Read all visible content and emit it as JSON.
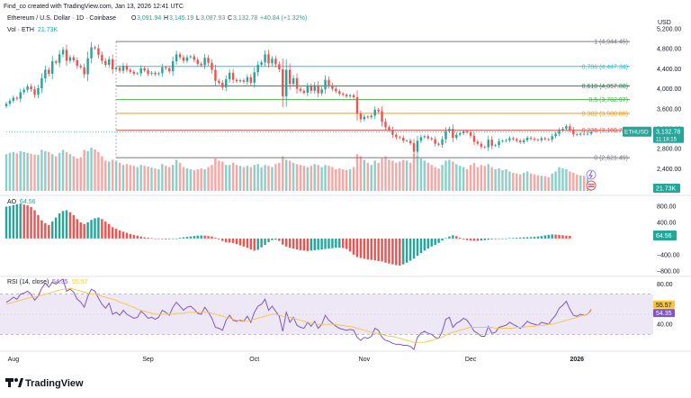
{
  "header": {
    "created_by": "Find_co created with TradingView.com, Jan 13, 2026 12:41 UTC",
    "symbol_line": "Ethereum / U.S. Dollar · 1D · Coinbase",
    "ohlc": {
      "o_label": "O",
      "o": "3,091.94",
      "h_label": "H",
      "h": "3,145.19",
      "l_label": "L",
      "l": "3,087.93",
      "c_label": "C",
      "c": "3,132.78",
      "change": "+40.84 (+1.32%)"
    },
    "volume_label": "Vol · ETH",
    "volume_value": "21.73K",
    "currency": "USD"
  },
  "colors": {
    "up": "#26a69a",
    "down": "#ef5350",
    "up_volume": "#8ccfc8",
    "down_volume": "#f4a8a6",
    "rsi_line": "#7e57c2",
    "rsi_ma": "#f5c542",
    "rsi_band": "#ede7f6",
    "fib_level_1": "#787b86",
    "fib_level_0786": "#26c6da",
    "fib_level_0618": "#1b8a4a",
    "fib_level_05": "#4caf50",
    "fib_level_0382": "#ff9800",
    "fib_level_0236": "#ef5350",
    "fib_level_0": "#787b86"
  },
  "footer": {
    "brand": "TradingView",
    "logo_icon": "tradingview-logo-icon"
  },
  "chart_data": [
    {
      "type": "candlestick",
      "title": "Ethereum / U.S. Dollar · 1D · Coinbase",
      "ylabel": "USD",
      "ylim": [
        2100,
        5200
      ],
      "yticks": [
        2400,
        2800,
        3200,
        3600,
        4000,
        4400,
        4800,
        5200
      ],
      "ytick_labels": [
        "2,400.00",
        "2,800.00",
        "3,200.00",
        "3,600.00",
        "4,000.00",
        "4,400.00",
        "4,800.00",
        "5,200.00"
      ],
      "x_tick_labels": [
        "Aug",
        "Sep",
        "Oct",
        "Nov",
        "Dec",
        "2026"
      ],
      "x_tick_bar_index": [
        2,
        40,
        70,
        101,
        131,
        161
      ],
      "current_price": {
        "symbol": "ETHUSD",
        "value": "3,132.78",
        "countdown": "11:18:15"
      },
      "fibonacci": [
        {
          "ratio": "1",
          "price": 4944.45,
          "label": "1 (4,944.45)"
        },
        {
          "ratio": "0.786",
          "price": 4447.34,
          "label": "0.786 (4,447.34)"
        },
        {
          "ratio": "0.618",
          "price": 4057.08,
          "label": "0.618 (4,057.08)"
        },
        {
          "ratio": "0.5",
          "price": 3782.97,
          "label": "0.5 (3,782.97)"
        },
        {
          "ratio": "0.382",
          "price": 3508.86,
          "label": "0.382 (3,508.86)"
        },
        {
          "ratio": "0.236",
          "price": 3169.7,
          "label": "0.236 (3,169.70)"
        },
        {
          "ratio": "0",
          "price": 2621.49,
          "label": "0 (2,621.49)"
        }
      ],
      "closes": [
        3700,
        3760,
        3820,
        3800,
        3930,
        3980,
        4050,
        3990,
        3880,
        4010,
        4210,
        4380,
        4300,
        4550,
        4520,
        4690,
        4780,
        4560,
        4630,
        4570,
        4460,
        4430,
        4290,
        4610,
        4830,
        4810,
        4680,
        4560,
        4480,
        4590,
        4390,
        4420,
        4360,
        4460,
        4380,
        4340,
        4300,
        4310,
        4410,
        4370,
        4300,
        4320,
        4290,
        4310,
        4430,
        4410,
        4350,
        4550,
        4690,
        4630,
        4560,
        4630,
        4650,
        4580,
        4500,
        4470,
        4620,
        4520,
        4380,
        4160,
        4120,
        4030,
        4190,
        4320,
        4180,
        4150,
        4170,
        4140,
        4230,
        4120,
        4330,
        4480,
        4530,
        4690,
        4510,
        4600,
        4490,
        4390,
        3850,
        4380,
        4100,
        4210,
        4000,
        3960,
        3920,
        4050,
        3960,
        4070,
        3910,
        3990,
        4180,
        4070,
        4000,
        3950,
        3900,
        3880,
        3850,
        3870,
        3830,
        3500,
        3390,
        3440,
        3430,
        3460,
        3580,
        3550,
        3340,
        3230,
        3180,
        3080,
        3030,
        3020,
        2960,
        2960,
        2910,
        2740,
        2960,
        3030,
        3050,
        3010,
        2990,
        2900,
        2880,
        2990,
        3150,
        3200,
        3020,
        3080,
        3110,
        3150,
        3130,
        3060,
        2940,
        2900,
        2840,
        2830,
        2980,
        2860,
        2870,
        2950,
        2960,
        2970,
        3010,
        2990,
        2960,
        2930,
        2970,
        3020,
        3000,
        2980,
        2970,
        3010,
        2990,
        2980,
        3050,
        3100,
        3170,
        3200,
        3250,
        3180,
        3090,
        3080,
        3100,
        3090,
        3100,
        3132.78
      ]
    },
    {
      "type": "bar",
      "title": "Volume",
      "series_name": "Vol · ETH",
      "last_value": "21.73K",
      "values": [
        0.85,
        0.88,
        0.9,
        0.87,
        0.92,
        0.9,
        0.88,
        0.86,
        0.84,
        0.83,
        0.95,
        0.92,
        0.9,
        0.85,
        0.8,
        0.88,
        0.95,
        0.9,
        0.85,
        0.8,
        0.75,
        0.78,
        0.95,
        0.92,
        1,
        0.96,
        0.9,
        0.8,
        0.7,
        0.68,
        0.72,
        0.7,
        0.65,
        0.6,
        0.62,
        0.6,
        0.58,
        0.55,
        0.6,
        0.58,
        0.56,
        0.54,
        0.52,
        0.5,
        0.62,
        0.58,
        0.55,
        0.6,
        0.72,
        0.65,
        0.55,
        0.52,
        0.5,
        0.48,
        0.5,
        0.52,
        0.5,
        0.55,
        0.6,
        0.75,
        0.7,
        0.68,
        0.6,
        0.6,
        0.65,
        0.6,
        0.58,
        0.55,
        0.58,
        0.55,
        0.6,
        0.62,
        0.55,
        0.6,
        0.58,
        0.55,
        0.62,
        0.65,
        0.8,
        0.72,
        0.7,
        0.65,
        0.62,
        0.6,
        0.58,
        0.55,
        0.58,
        0.62,
        0.6,
        0.55,
        0.6,
        0.58,
        0.55,
        0.5,
        0.52,
        0.5,
        0.48,
        0.5,
        0.55,
        0.85,
        0.8,
        0.72,
        0.65,
        0.6,
        0.7,
        0.65,
        0.75,
        0.8,
        0.72,
        0.7,
        0.65,
        0.68,
        0.72,
        0.7,
        0.65,
        0.85,
        0.8,
        0.75,
        0.7,
        0.65,
        0.6,
        0.55,
        0.52,
        0.6,
        0.7,
        0.72,
        0.68,
        0.62,
        0.58,
        0.55,
        0.5,
        0.6,
        0.65,
        0.55,
        0.6,
        0.58,
        0.62,
        0.55,
        0.5,
        0.52,
        0.48,
        0.5,
        0.45,
        0.42,
        0.4,
        0.38,
        0.42,
        0.45,
        0.4,
        0.38,
        0.36,
        0.35,
        0.34,
        0.32,
        0.4,
        0.45,
        0.55,
        0.52,
        0.5,
        0.45,
        0.42,
        0.38,
        0.36,
        0.35,
        0.3,
        0.22
      ]
    },
    {
      "type": "bar",
      "title": "AO",
      "series_name": "AO",
      "last_value": "64.56",
      "ylim": [
        -850,
        1000
      ],
      "yticks": [
        -800,
        -400,
        0,
        400,
        800
      ],
      "ytick_labels": [
        "−800.00",
        "−400.00",
        "0.00",
        "400.00",
        "800.00"
      ],
      "values": [
        790,
        800,
        830,
        850,
        860,
        840,
        820,
        780,
        700,
        580,
        450,
        380,
        330,
        420,
        520,
        620,
        680,
        700,
        650,
        580,
        480,
        400,
        360,
        400,
        460,
        500,
        520,
        480,
        420,
        360,
        280,
        240,
        200,
        170,
        140,
        110,
        90,
        70,
        50,
        30,
        20,
        10,
        0,
        -10,
        -15,
        -20,
        -15,
        -10,
        0,
        20,
        30,
        40,
        50,
        60,
        70,
        75,
        70,
        60,
        50,
        20,
        -20,
        -60,
        -90,
        -100,
        -110,
        -140,
        -170,
        -200,
        -230,
        -270,
        -300,
        -280,
        -220,
        -160,
        -90,
        -40,
        -30,
        -60,
        -150,
        -200,
        -230,
        -250,
        -270,
        -290,
        -300,
        -310,
        -300,
        -290,
        -280,
        -270,
        -260,
        -250,
        -240,
        -230,
        -225,
        -235,
        -260,
        -320,
        -400,
        -460,
        -480,
        -500,
        -520,
        -530,
        -540,
        -560,
        -570,
        -600,
        -620,
        -640,
        -660,
        -670,
        -640,
        -600,
        -550,
        -500,
        -430,
        -360,
        -300,
        -250,
        -200,
        -160,
        -110,
        -50,
        10,
        50,
        80,
        60,
        20,
        -20,
        -40,
        -50,
        -55,
        -58,
        -50,
        -40,
        -30,
        -20,
        -15,
        -10,
        -5,
        0,
        10,
        15,
        20,
        25,
        30,
        32,
        35,
        40,
        50,
        60,
        75,
        90,
        100,
        95,
        90,
        80,
        70,
        64.56
      ]
    },
    {
      "type": "line",
      "title": "RSI (14, close)",
      "series": [
        {
          "name": "RSI",
          "last_value": "54.35",
          "values": [
            62,
            64,
            67,
            65,
            70,
            71,
            73,
            70,
            64,
            68,
            76,
            81,
            77,
            82,
            80,
            83,
            85,
            73,
            75,
            72,
            65,
            62,
            57,
            68,
            75,
            73,
            66,
            60,
            56,
            61,
            50,
            52,
            49,
            54,
            50,
            48,
            46,
            47,
            53,
            50,
            46,
            47,
            45,
            47,
            54,
            52,
            49,
            57,
            62,
            58,
            54,
            57,
            58,
            55,
            51,
            50,
            57,
            52,
            46,
            37,
            36,
            34,
            44,
            49,
            44,
            43,
            44,
            43,
            48,
            42,
            52,
            58,
            60,
            65,
            54,
            58,
            53,
            48,
            33,
            52,
            42,
            47,
            39,
            37,
            36,
            42,
            38,
            43,
            36,
            40,
            49,
            44,
            41,
            38,
            36,
            35,
            34,
            35,
            34,
            27,
            24,
            27,
            26,
            28,
            36,
            34,
            27,
            24,
            23,
            21,
            20,
            20,
            19,
            19,
            18,
            15,
            27,
            31,
            33,
            31,
            30,
            27,
            26,
            33,
            45,
            47,
            37,
            41,
            43,
            46,
            44,
            39,
            33,
            31,
            28,
            28,
            38,
            31,
            32,
            37,
            38,
            39,
            42,
            40,
            38,
            36,
            39,
            43,
            41,
            40,
            39,
            42,
            41,
            40,
            45,
            49,
            56,
            59,
            63,
            55,
            49,
            48,
            50,
            49,
            50,
            54.35
          ]
        },
        {
          "name": "RSI-based MA",
          "last_value": "55.57",
          "values": [
            60,
            61,
            62,
            63,
            64,
            65,
            66,
            67,
            67,
            68,
            69,
            70,
            71,
            72,
            73,
            74,
            75,
            75,
            76,
            75,
            74,
            73,
            72,
            71,
            70,
            70,
            69,
            68,
            67,
            66,
            65,
            64,
            62,
            61,
            60,
            58,
            57,
            55,
            54,
            53,
            52,
            51,
            50,
            50,
            50,
            50,
            50,
            50,
            51,
            51,
            51,
            52,
            52,
            52,
            52,
            52,
            52,
            52,
            51,
            50,
            49,
            48,
            47,
            46,
            45,
            44,
            43,
            43,
            43,
            44,
            45,
            46,
            47,
            48,
            49,
            50,
            50,
            49,
            48,
            48,
            47,
            46,
            45,
            44,
            43,
            42,
            41,
            41,
            40,
            40,
            40,
            40,
            40,
            40,
            39,
            39,
            38,
            38,
            37,
            36,
            35,
            34,
            33,
            32,
            31,
            31,
            30,
            29,
            28,
            28,
            27,
            26,
            25,
            24,
            23,
            22,
            22,
            22,
            22,
            23,
            24,
            25,
            26,
            27,
            29,
            31,
            32,
            33,
            34,
            35,
            36,
            37,
            37,
            37,
            37,
            37,
            37,
            37,
            36,
            36,
            36,
            36,
            36,
            36,
            37,
            37,
            37,
            38,
            38,
            38,
            39,
            39,
            39,
            40,
            40,
            41,
            42,
            43,
            44,
            45,
            46,
            47,
            48,
            49,
            50,
            55.57
          ]
        }
      ],
      "ylim": [
        15,
        85
      ],
      "yticks": [
        40,
        80
      ],
      "ytick_labels": [
        "40.00",
        "80.00"
      ],
      "bands": [
        30,
        70
      ]
    }
  ]
}
